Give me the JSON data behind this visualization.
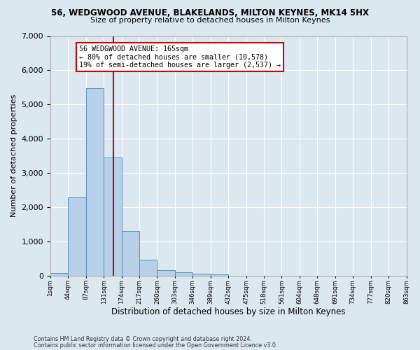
{
  "title": "56, WEDGWOOD AVENUE, BLAKELANDS, MILTON KEYNES, MK14 5HX",
  "subtitle": "Size of property relative to detached houses in Milton Keynes",
  "xlabel": "Distribution of detached houses by size in Milton Keynes",
  "ylabel": "Number of detached properties",
  "footnote1": "Contains HM Land Registry data © Crown copyright and database right 2024.",
  "footnote2": "Contains public sector information licensed under the Open Government Licence v3.0.",
  "bar_color": "#b8d0e8",
  "bar_edge_color": "#5590c0",
  "background_color": "#dce8f0",
  "grid_color": "#ffffff",
  "annotation_box_color": "#cc0000",
  "vline_color": "#cc0000",
  "n_bins": 20,
  "bar_heights": [
    70,
    2280,
    5470,
    3440,
    1300,
    470,
    160,
    90,
    60,
    30,
    0,
    0,
    0,
    0,
    0,
    0,
    0,
    0,
    0,
    0
  ],
  "vline_bin": 3.56,
  "ylim": [
    0,
    7000
  ],
  "annotation_title": "56 WEDGWOOD AVENUE: 165sqm",
  "annotation_line1": "← 80% of detached houses are smaller (10,578)",
  "annotation_line2": "19% of semi-detached houses are larger (2,537) →",
  "tick_labels": [
    "1sqm",
    "44sqm",
    "87sqm",
    "131sqm",
    "174sqm",
    "217sqm",
    "260sqm",
    "303sqm",
    "346sqm",
    "389sqm",
    "432sqm",
    "475sqm",
    "518sqm",
    "561sqm",
    "604sqm",
    "648sqm",
    "691sqm",
    "734sqm",
    "777sqm",
    "820sqm",
    "863sqm"
  ]
}
